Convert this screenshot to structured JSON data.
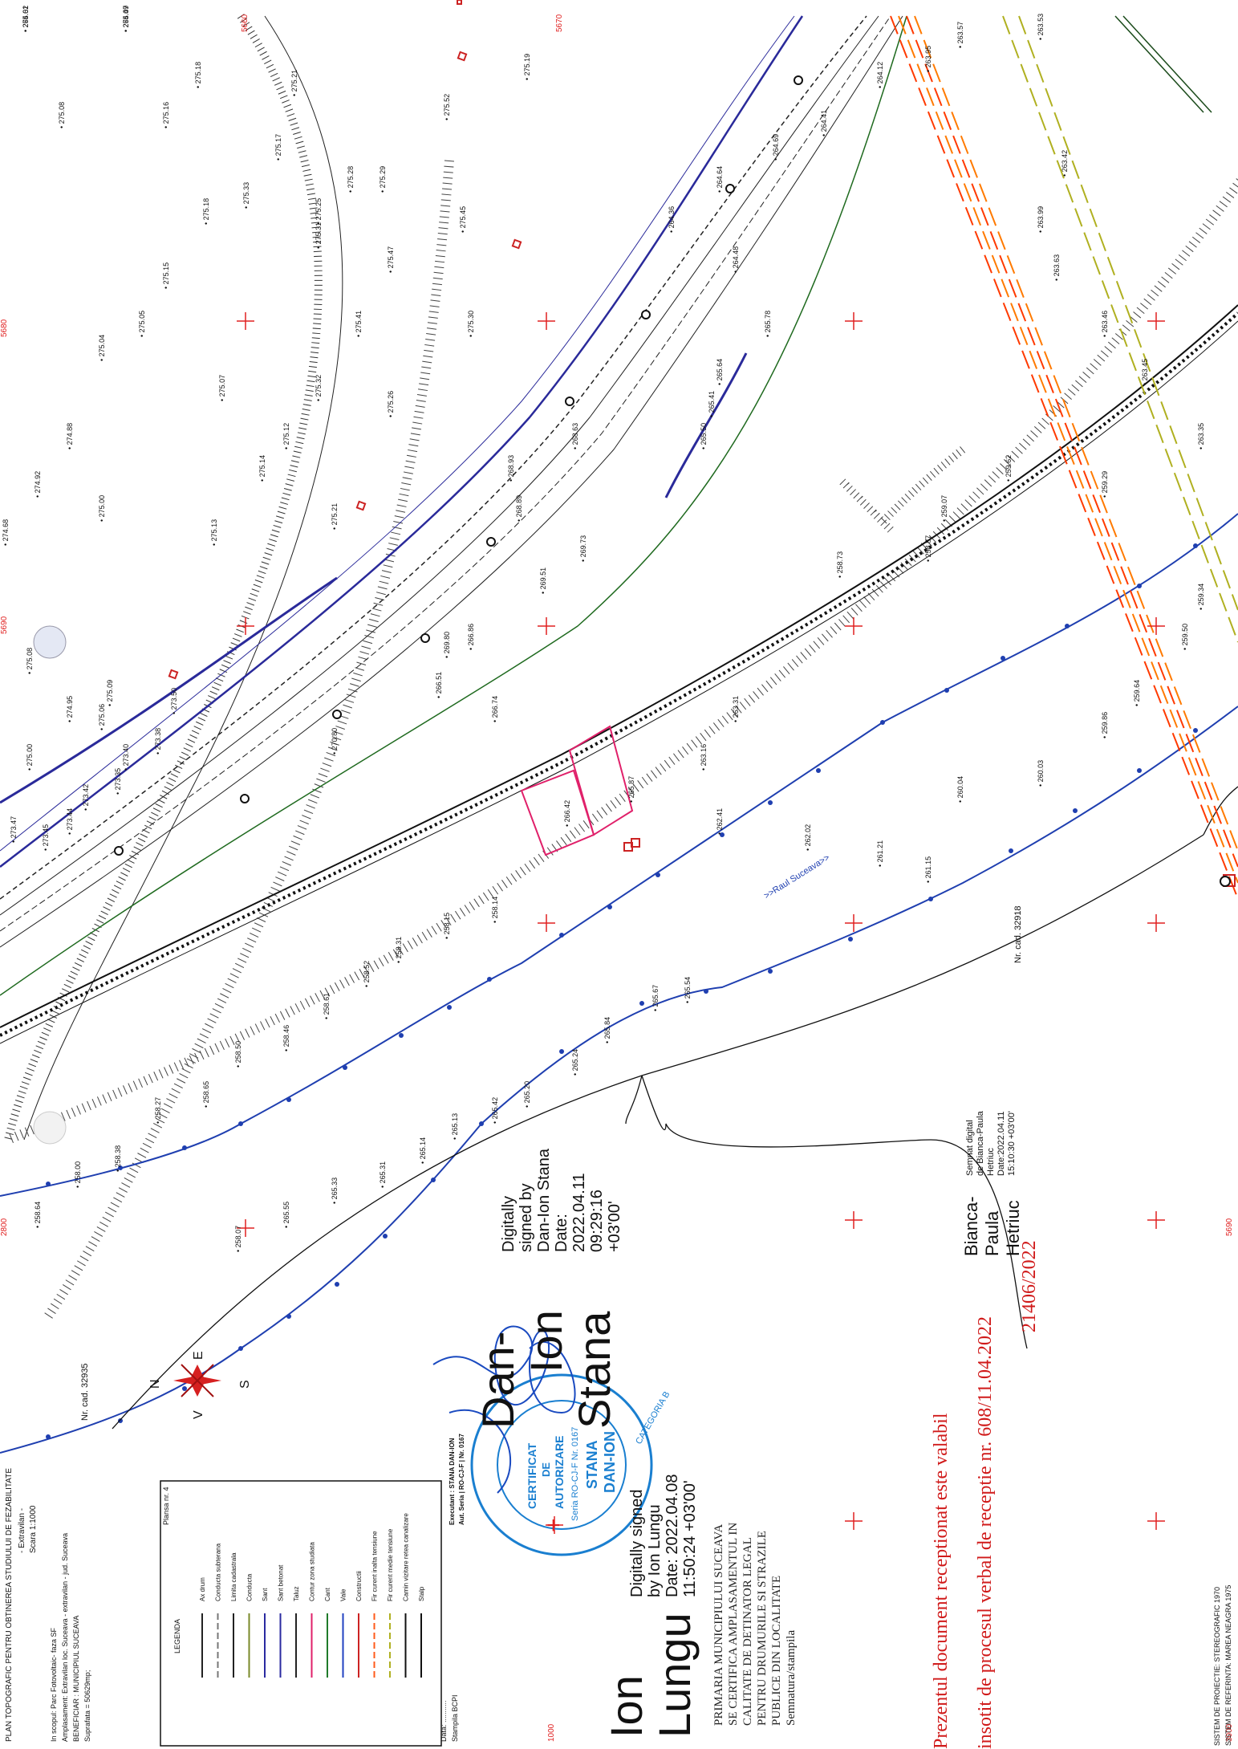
{
  "plan": {
    "title_lines": [
      "PLAN TOPOGRAFIC PENTRU OBTINEREA STUDIULUI DE FEZABILITATE",
      "- Extravilan -",
      "Scara 1:1000"
    ],
    "info_lines": [
      "In scopul: Parc Fotovoltaic- faza SF",
      "Amplasament: Extravilan loc. Suceava - extravilan - jud. Suceava",
      "BENEFICIAR : MUNICIPIUL SUCEAVA",
      "Suprafata = 50629mp;"
    ],
    "coord_system": [
      "SISTEM DE PROIECTIE: STEREOGRAFIC 1970",
      "SISTEM DE REFERINTA: MAREA NEAGRA 1975"
    ],
    "date_label": "Data: ...........",
    "stamp_label": "Stampila BCPI"
  },
  "legend": {
    "title": "LEGENDA",
    "sheet": "Plansa nr. 4",
    "items": [
      {
        "label": "Ax drum",
        "color": "#222222"
      },
      {
        "label": "Conducta subterana",
        "color": "#777777"
      },
      {
        "label": "Limita cadastrala",
        "color": "#222222"
      },
      {
        "label": "Conducta",
        "color": "#7a8a2a"
      },
      {
        "label": "Sant",
        "color": "#2a2aa0"
      },
      {
        "label": "Sant betonat",
        "color": "#2a2aa0"
      },
      {
        "label": "Taluz",
        "color": "#222222"
      },
      {
        "label": "Contur zona studiata",
        "color": "#e0206a"
      },
      {
        "label": "Cant",
        "color": "#1f7a2a"
      },
      {
        "label": "Vale",
        "color": "#2040c0"
      },
      {
        "label": "Constructii",
        "color": "#cc2222"
      },
      {
        "label": "Fir curent inalta tensiune",
        "color": "#ff5a1a"
      },
      {
        "label": "Fir curent medie tensiune",
        "color": "#b0b020"
      },
      {
        "label": "Camin vizitare retea canalizare",
        "color": "#111111"
      },
      {
        "label": "Stalp",
        "color": "#111111"
      }
    ]
  },
  "compass": {
    "n": "N",
    "s": "S",
    "e": "E",
    "v": "V"
  },
  "executant": [
    "Executant : STANA DAN-ION",
    "Aut. Seria | RO-CJ-F | Nr. 0167"
  ],
  "stamp": {
    "ring": "ANCPI si bucurie-executie lucrari de cadastru, geodezie si cartografie",
    "center": [
      "CERTIFICAT",
      "DE",
      "AUTORIZARE",
      "Seria RO-CJ-F Nr. 0167",
      "STANA",
      "DAN-ION"
    ],
    "category": "CATEGORIA B"
  },
  "signatures": {
    "stana": {
      "name": [
        "Dan-",
        "Ion",
        "Stana"
      ],
      "details": [
        "Digitally",
        "signed by",
        "Dan-Ion Stana",
        "Date:",
        "2022.04.11",
        "09:29:16",
        "+03'00'"
      ]
    },
    "lungu": {
      "name": [
        "Ion",
        "Lungu"
      ],
      "details": [
        "Digitally signed",
        "by Ion Lungu",
        "Date: 2022.04.08",
        "11:50:24 +03'00'"
      ]
    },
    "hetriuc": {
      "name": [
        "Bianca-",
        "Paula",
        "Hetriuc"
      ],
      "details": [
        "Semnat digital",
        "de Bianca-Paula",
        "Hetriuc",
        "Date:2022.04.11",
        "15:10:30 +03'00'"
      ]
    }
  },
  "primaria": [
    "PRIMARIA MUNICIPIULUI SUCEAVA",
    "SE CERTIFICA AMPLASAMENTUL IN",
    "CALITATE DE DETINATOR LEGAL",
    "PENTRU DRUMURILE SI STRAZILE",
    "PUBLICE DIN LOCALITATE",
    "Semnatura/stampila"
  ],
  "reception": {
    "line1": "Prezentul document receptionat este valabil",
    "line2": "insotit de procesul verbal de receptie nr. 608/11.04.2022",
    "number": "21406/2022"
  },
  "map_labels": {
    "river": ">>Raul Suceava>>",
    "cad1": "Nr. cad. 32935",
    "cad2": "Nr. cad. 32918",
    "grid": [
      "5660",
      "5670",
      "5680",
      "5690",
      "2800",
      "3000",
      "1000",
      "5690"
    ]
  },
  "elevations": [
    "275.01",
    "275.09",
    "275.18",
    "275.18",
    "275.21",
    "275.25",
    "275.29",
    "275.45",
    "275.52",
    "275.19",
    "275.08",
    "275.16",
    "275.17",
    "275.33",
    "275.28",
    "275.31",
    "275.47",
    "275.41",
    "275.30",
    "275.26",
    "275.05",
    "275.15",
    "275.13",
    "275.14",
    "275.12",
    "274.88",
    "274.92",
    "274.68",
    "275.00",
    "275.04",
    "275.07",
    "275.32",
    "275.21",
    "275.09",
    "275.06",
    "275.08",
    "274.95",
    "275.00",
    "273.47",
    "273.45",
    "273.44",
    "273.42",
    "273.35",
    "273.40",
    "273.38",
    "273.50",
    "270.80",
    "269.80",
    "269.51",
    "269.73",
    "268.89",
    "268.93",
    "268.63",
    "266.86",
    "266.51",
    "266.74",
    "266.42",
    "265.87",
    "265.50",
    "265.41",
    "265.64",
    "265.78",
    "264.48",
    "264.36",
    "264.64",
    "264.69",
    "264.41",
    "264.12",
    "263.95",
    "263.57",
    "263.53",
    "263.42",
    "263.99",
    "263.63",
    "263.46",
    "263.45",
    "263.35",
    "263.31",
    "263.16",
    "262.41",
    "262.02",
    "261.21",
    "261.15",
    "260.04",
    "260.03",
    "259.86",
    "259.64",
    "259.50",
    "259.34",
    "259.29",
    "259.62",
    "259.07",
    "258.87",
    "258.73",
    "258.64",
    "258.00",
    "258.38",
    "258.27",
    "258.65",
    "258.50",
    "258.46",
    "258.61",
    "258.52",
    "258.31",
    "258.15",
    "258.14",
    "258.07",
    "265.55",
    "265.33",
    "265.31",
    "265.14",
    "265.13",
    "265.42",
    "265.20",
    "265.24",
    "265.84",
    "265.67",
    "265.54",
    "264.62",
    "264.47"
  ]
}
